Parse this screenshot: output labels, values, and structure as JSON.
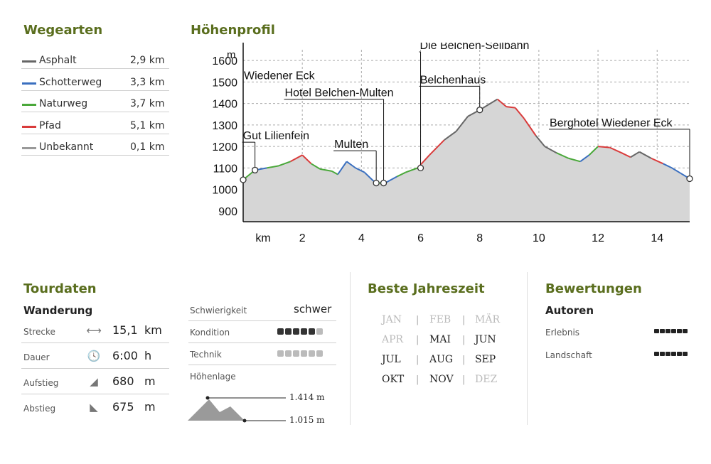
{
  "wegearten": {
    "title": "Wegearten",
    "items": [
      {
        "name": "Asphalt",
        "value": "2,9 km",
        "color": "#666666"
      },
      {
        "name": "Schotterweg",
        "value": "3,3 km",
        "color": "#3a6fbf"
      },
      {
        "name": "Naturweg",
        "value": "3,7 km",
        "color": "#4aa83a"
      },
      {
        "name": "Pfad",
        "value": "5,1 km",
        "color": "#d93b3b"
      },
      {
        "name": "Unbekannt",
        "value": "0,1 km",
        "color": "#999999"
      }
    ]
  },
  "hoehenprofil": {
    "title": "Höhenprofil",
    "y_unit": "m",
    "x_unit": "km",
    "chart_data": {
      "type": "area",
      "xlim": [
        0,
        15.1
      ],
      "ylim": [
        850,
        1650
      ],
      "y_ticks": [
        900,
        1000,
        1100,
        1200,
        1300,
        1400,
        1500,
        1600
      ],
      "x_ticks": [
        2,
        4,
        6,
        8,
        10,
        12,
        14
      ],
      "x_tick_labels": [
        "2",
        "4",
        "6",
        "8",
        "10",
        "12",
        "14"
      ],
      "y_tick_labels": [
        "900",
        "1000",
        "1100",
        "1200",
        "1300",
        "1400",
        "1500",
        "1600"
      ],
      "grid": "dashed",
      "profile": [
        [
          0,
          1045,
          "g"
        ],
        [
          0.4,
          1090,
          "g"
        ],
        [
          0.8,
          1100,
          "b"
        ],
        [
          1.2,
          1110,
          "g"
        ],
        [
          1.6,
          1130,
          "g"
        ],
        [
          2.0,
          1160,
          "r"
        ],
        [
          2.3,
          1120,
          "r"
        ],
        [
          2.6,
          1095,
          "g"
        ],
        [
          3.0,
          1085,
          "g"
        ],
        [
          3.2,
          1070,
          "g"
        ],
        [
          3.5,
          1130,
          "b"
        ],
        [
          3.8,
          1100,
          "b"
        ],
        [
          4.1,
          1080,
          "b"
        ],
        [
          4.4,
          1040,
          "b"
        ],
        [
          4.6,
          1030,
          "b"
        ],
        [
          4.8,
          1030,
          "g"
        ],
        [
          5.2,
          1060,
          "b"
        ],
        [
          5.5,
          1080,
          "g"
        ],
        [
          5.9,
          1100,
          "g"
        ],
        [
          6.3,
          1160,
          "r"
        ],
        [
          6.8,
          1230,
          "r"
        ],
        [
          7.2,
          1270,
          "a"
        ],
        [
          7.6,
          1340,
          "a"
        ],
        [
          8.0,
          1370,
          "a"
        ],
        [
          8.3,
          1395,
          "a"
        ],
        [
          8.6,
          1420,
          "a"
        ],
        [
          8.9,
          1385,
          "r"
        ],
        [
          9.2,
          1380,
          "r"
        ],
        [
          9.5,
          1330,
          "r"
        ],
        [
          9.9,
          1250,
          "r"
        ],
        [
          10.2,
          1200,
          "a"
        ],
        [
          10.6,
          1170,
          "a"
        ],
        [
          11.0,
          1145,
          "g"
        ],
        [
          11.4,
          1130,
          "g"
        ],
        [
          11.7,
          1160,
          "b"
        ],
        [
          12.0,
          1200,
          "g"
        ],
        [
          12.4,
          1195,
          "r"
        ],
        [
          12.8,
          1170,
          "r"
        ],
        [
          13.1,
          1150,
          "r"
        ],
        [
          13.4,
          1175,
          "a"
        ],
        [
          13.8,
          1145,
          "a"
        ],
        [
          14.2,
          1120,
          "r"
        ],
        [
          14.5,
          1100,
          "b"
        ],
        [
          14.8,
          1075,
          "b"
        ],
        [
          15.1,
          1050,
          "b"
        ]
      ],
      "waypoints": [
        {
          "name": "Wiedener Eck",
          "x": 0,
          "y": 1045,
          "label_y": 1500
        },
        {
          "name": "Gut Lilienfein",
          "x": 0.4,
          "y": 1090,
          "label_y": 1220
        },
        {
          "name": "Multen",
          "x": 4.5,
          "y": 1030,
          "label_y": 1180
        },
        {
          "name": "Hotel Belchen-Multen",
          "x": 4.75,
          "y": 1030,
          "label_y": 1420
        },
        {
          "name": "Die Belchen-Seilbahn",
          "x": 6.0,
          "y": 1100,
          "label_y": 1640
        },
        {
          "name": "Belchenhaus",
          "x": 8.0,
          "y": 1370,
          "label_y": 1480
        },
        {
          "name": "Berghotel Wiedener Eck",
          "x": 15.1,
          "y": 1050,
          "label_y": 1280
        }
      ]
    }
  },
  "tourdaten": {
    "title": "Tourdaten",
    "subtitle": "Wanderung",
    "rows": [
      {
        "label": "Strecke",
        "icon": "distance-icon",
        "glyph": "⟷",
        "value": "15,1",
        "unit": "km"
      },
      {
        "label": "Dauer",
        "icon": "clock-icon",
        "glyph": "🕓",
        "value": "6:00",
        "unit": "h"
      },
      {
        "label": "Aufstieg",
        "icon": "ascent-icon",
        "glyph": "◢",
        "value": "680",
        "unit": "m"
      },
      {
        "label": "Abstieg",
        "icon": "descent-icon",
        "glyph": "◣",
        "value": "675",
        "unit": "m"
      }
    ],
    "schwierigkeit_label": "Schwierigkeit",
    "schwierigkeit_value": "schwer",
    "kondition_label": "Kondition",
    "kondition_level": 5,
    "technik_label": "Technik",
    "technik_level": 0,
    "hoehenlage_label": "Höhenlage",
    "hoehenlage_max": "1.414 m",
    "hoehenlage_min": "1.015 m"
  },
  "jahreszeit": {
    "title": "Beste Jahreszeit",
    "months": [
      {
        "name": "JAN",
        "active": false
      },
      {
        "name": "FEB",
        "active": false
      },
      {
        "name": "MÄR",
        "active": false
      },
      {
        "name": "APR",
        "active": false
      },
      {
        "name": "MAI",
        "active": true
      },
      {
        "name": "JUN",
        "active": true
      },
      {
        "name": "JUL",
        "active": true
      },
      {
        "name": "AUG",
        "active": true
      },
      {
        "name": "SEP",
        "active": true
      },
      {
        "name": "OKT",
        "active": true
      },
      {
        "name": "NOV",
        "active": true
      },
      {
        "name": "DEZ",
        "active": false
      }
    ]
  },
  "bewertungen": {
    "title": "Bewertungen",
    "subtitle": "Autoren",
    "rows": [
      {
        "label": "Erlebnis",
        "level": 6
      },
      {
        "label": "Landschaft",
        "level": 6
      }
    ]
  }
}
